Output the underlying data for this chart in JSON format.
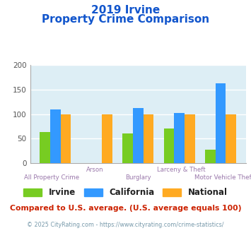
{
  "title_line1": "2019 Irvine",
  "title_line2": "Property Crime Comparison",
  "categories": [
    "All Property Crime",
    "Arson",
    "Burglary",
    "Larceny & Theft",
    "Motor Vehicle Theft"
  ],
  "irvine": [
    64,
    0,
    60,
    70,
    27
  ],
  "california": [
    110,
    0,
    113,
    103,
    163
  ],
  "national": [
    100,
    100,
    100,
    100,
    100
  ],
  "colors": {
    "irvine": "#77cc22",
    "california": "#3399ff",
    "national": "#ffaa22"
  },
  "ylim": [
    0,
    200
  ],
  "yticks": [
    0,
    50,
    100,
    150,
    200
  ],
  "bg_color": "#ddeef5",
  "title_color": "#1155cc",
  "xlabel_color": "#9977aa",
  "legend_label_color": "#222222",
  "footer_text": "Compared to U.S. average. (U.S. average equals 100)",
  "footer_color": "#cc2200",
  "copyright_text": "© 2025 CityRating.com - https://www.cityrating.com/crime-statistics/",
  "copyright_color": "#7799aa"
}
